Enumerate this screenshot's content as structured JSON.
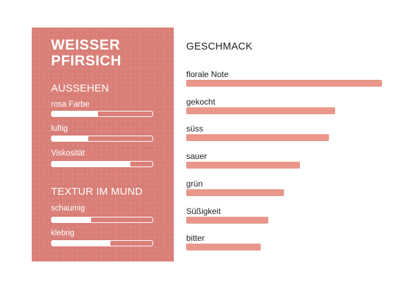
{
  "product": {
    "title_line1": "WEISSER",
    "title_line2": "PFIRSICH"
  },
  "appearance": {
    "title": "AUSSEHEN",
    "items": [
      {
        "label": "rosa Farbe",
        "value": 0.46
      },
      {
        "label": "luftig",
        "value": 0.36
      },
      {
        "label": "Viskosität",
        "value": 0.78
      }
    ]
  },
  "mouthfeel": {
    "title": "TEXTUR IM MUND",
    "items": [
      {
        "label": "schaumig",
        "value": 0.39
      },
      {
        "label": "klebrig",
        "value": 0.58
      }
    ]
  },
  "colors": {
    "panel": "#d97f78",
    "bar": "#e8978a",
    "meter_fill": "#ffffff"
  },
  "chart_data": {
    "type": "bar",
    "title": "GESCHMACK",
    "categories": [
      "florale Note",
      "gekocht",
      "süss",
      "sauer",
      "grün",
      "Süßigkeit",
      "bitter"
    ],
    "values": [
      100,
      76,
      73,
      58,
      50,
      42,
      38
    ],
    "ylim": [
      0,
      100
    ],
    "orientation": "horizontal",
    "grid": false
  }
}
